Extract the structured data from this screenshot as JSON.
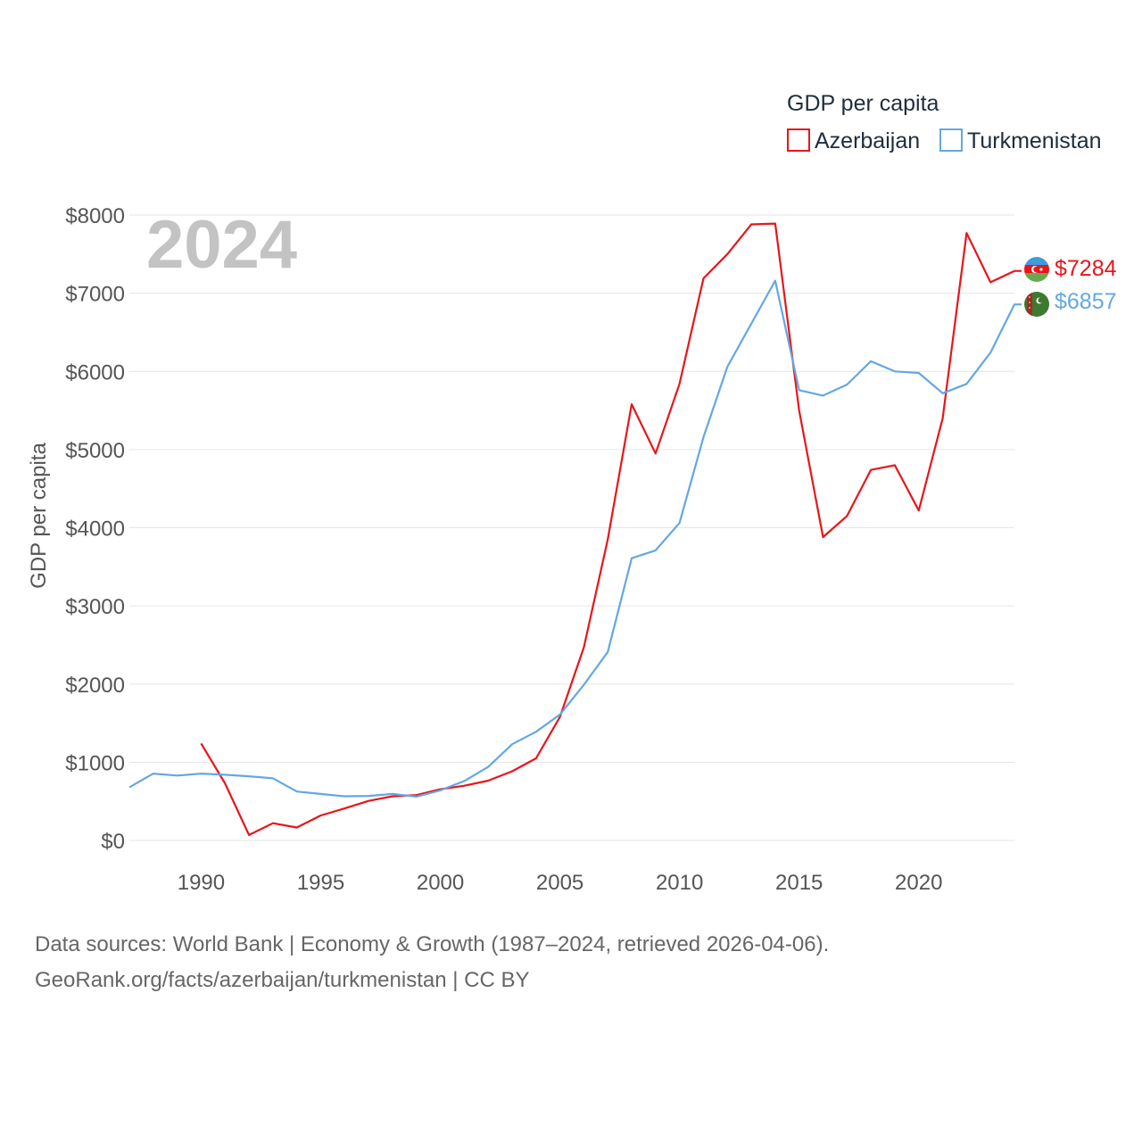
{
  "chart_data": {
    "type": "line",
    "title": "",
    "year_label": "2024",
    "legend_title": "GDP per capita",
    "xlabel": "",
    "ylabel": "GDP per capita",
    "xlim": [
      1987,
      2024
    ],
    "ylim": [
      0,
      8000
    ],
    "yticks": [
      {
        "value": 0,
        "label": "$0"
      },
      {
        "value": 1000,
        "label": "$1000"
      },
      {
        "value": 2000,
        "label": "$2000"
      },
      {
        "value": 3000,
        "label": "$3000"
      },
      {
        "value": 4000,
        "label": "$4000"
      },
      {
        "value": 5000,
        "label": "$5000"
      },
      {
        "value": 6000,
        "label": "$6000"
      },
      {
        "value": 7000,
        "label": "$7000"
      },
      {
        "value": 8000,
        "label": "$8000"
      }
    ],
    "xticks": [
      {
        "value": 1990,
        "label": "1990"
      },
      {
        "value": 1995,
        "label": "1995"
      },
      {
        "value": 2000,
        "label": "2000"
      },
      {
        "value": 2005,
        "label": "2005"
      },
      {
        "value": 2010,
        "label": "2010"
      },
      {
        "value": 2015,
        "label": "2015"
      },
      {
        "value": 2020,
        "label": "2020"
      }
    ],
    "series": [
      {
        "name": "Azerbaijan",
        "color": "#e8151b",
        "end_label": "$7284",
        "flag": "azerbaijan-flag",
        "x": [
          1990,
          1991,
          1992,
          1993,
          1994,
          1995,
          1996,
          1997,
          1998,
          1999,
          2000,
          2001,
          2002,
          2003,
          2004,
          2005,
          2006,
          2007,
          2008,
          2009,
          2010,
          2011,
          2012,
          2013,
          2014,
          2015,
          2016,
          2017,
          2018,
          2019,
          2020,
          2021,
          2022,
          2023,
          2024
        ],
        "values": [
          1240,
          730,
          70,
          220,
          165,
          320,
          410,
          505,
          565,
          580,
          655,
          700,
          765,
          885,
          1050,
          1580,
          2470,
          3850,
          5580,
          4950,
          5840,
          7190,
          7500,
          7880,
          7890,
          5500,
          3880,
          4150,
          4740,
          4800,
          4220,
          5400,
          7770,
          7140,
          7284
        ]
      },
      {
        "name": "Turkmenistan",
        "color": "#64a7e2",
        "end_label": "$6857",
        "flag": "turkmenistan-flag",
        "x": [
          1987,
          1988,
          1989,
          1990,
          1991,
          1992,
          1993,
          1994,
          1995,
          1996,
          1997,
          1998,
          1999,
          2000,
          2001,
          2002,
          2003,
          2004,
          2005,
          2006,
          2007,
          2008,
          2009,
          2010,
          2011,
          2012,
          2013,
          2014,
          2015,
          2016,
          2017,
          2018,
          2019,
          2020,
          2021,
          2022,
          2023,
          2024
        ],
        "values": [
          680,
          855,
          830,
          855,
          840,
          820,
          795,
          625,
          595,
          565,
          570,
          595,
          560,
          640,
          760,
          940,
          1230,
          1390,
          1610,
          1990,
          2410,
          3610,
          3710,
          4060,
          5160,
          6060,
          6610,
          7160,
          5760,
          5690,
          5830,
          6130,
          6000,
          5980,
          5720,
          5840,
          6240,
          6857
        ]
      }
    ],
    "source_line1": "Data sources: World Bank | Economy & Growth (1987–2024, retrieved 2026-04-06).",
    "source_line2": "GeoRank.org/facts/azerbaijan/turkmenistan | CC BY"
  }
}
